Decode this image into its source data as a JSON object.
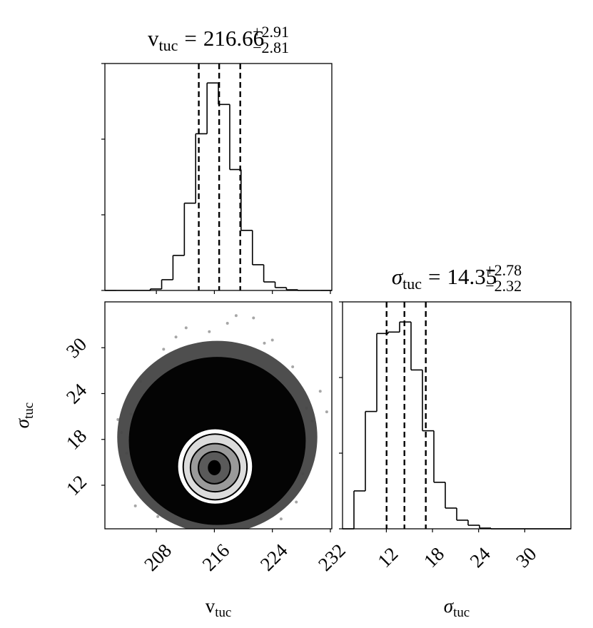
{
  "chart_data": [
    {
      "type": "histogram",
      "title": {
        "symbol": "v",
        "italic": false,
        "subscript": "tuc",
        "relation": "=",
        "value": "216.66",
        "plus": "+2.91",
        "minus": "−2.81"
      },
      "bins": [
        200.9,
        202.47,
        204.03,
        205.6,
        207.16,
        208.73,
        210.29,
        211.86,
        213.42,
        214.99,
        216.55,
        218.12,
        219.68,
        221.25,
        222.81,
        224.38,
        225.94,
        227.51,
        229.07,
        230.64,
        232.2
      ],
      "counts": [
        0,
        0,
        0,
        0,
        19,
        142,
        463,
        1154,
        2071,
        2743,
        2459,
        1598,
        794,
        340,
        113,
        38,
        9,
        0,
        0,
        0
      ],
      "quantiles": [
        213.85,
        216.66,
        219.57
      ],
      "color": "#000000",
      "xlim": [
        200.9,
        232.2
      ],
      "xticks": [
        208,
        216,
        224,
        232
      ],
      "xtick_labels": false,
      "ylim": [
        0,
        3000
      ],
      "yticks": [
        0,
        1000,
        2000,
        3000
      ],
      "ytick_labels": false
    },
    {
      "type": "density2d",
      "x": [
        204.5,
        203.2,
        228.7,
        229.5,
        212.1,
        221.4,
        224.0,
        209.0,
        226.8,
        205.8,
        230.6,
        206.4,
        228.2,
        203.9,
        219.0,
        215.3,
        210.7,
        227.3,
        205.1,
        231.5,
        222.9,
        217.8,
        208.2,
        225.2,
        202.7
      ],
      "y": [
        21.3,
        18.9,
        22.1,
        20.4,
        32.6,
        33.9,
        31.0,
        29.8,
        27.5,
        25.6,
        24.3,
        12.8,
        13.5,
        16.2,
        34.2,
        32.1,
        31.4,
        9.8,
        9.3,
        21.6,
        30.6,
        33.2,
        7.9,
        7.6,
        20.6
      ],
      "density": [
        {
          "cx": 216.4,
          "cy": 18.3,
          "rx": 13.8,
          "ry": 12.6,
          "color": "#444444"
        },
        {
          "cx": 216.4,
          "cy": 17.8,
          "rx": 12.2,
          "ry": 11.0,
          "color": "#000000"
        }
      ],
      "contours": [
        {
          "cx": 216.1,
          "cy": 14.46,
          "rx": 5.2,
          "ry": 4.96,
          "color": "#ffffff"
        },
        {
          "cx": 216.1,
          "cy": 14.4,
          "rx": 4.4,
          "ry": 4.3,
          "color": "#dcdcdc"
        },
        {
          "cx": 216.1,
          "cy": 14.3,
          "rx": 3.4,
          "ry": 3.15,
          "color": "#9a9a9a"
        },
        {
          "cx": 216.0,
          "cy": 14.3,
          "rx": 2.2,
          "ry": 2.1,
          "color": "#5a5a5a"
        },
        {
          "cx": 216.0,
          "cy": 14.3,
          "rx": 0.8,
          "ry": 0.9,
          "color": "#000000"
        }
      ],
      "xlim": [
        200.9,
        232.2
      ],
      "xticks": [
        208,
        216,
        224,
        232
      ],
      "xtick_labels": true,
      "ylim": [
        6.3,
        36.0
      ],
      "yticks": [
        12,
        18,
        24,
        30
      ],
      "ytick_labels": true,
      "xlabel": {
        "symbol": "v",
        "italic": false,
        "subscript": "tuc"
      },
      "ylabel": {
        "symbol": "σ",
        "italic": true,
        "subscript": "tuc"
      }
    },
    {
      "type": "histogram",
      "title": {
        "symbol": "σ",
        "italic": true,
        "subscript": "tuc",
        "relation": "=",
        "value": "14.35",
        "plus": "+2.78",
        "minus": "−2.32"
      },
      "bins": [
        6.3,
        7.785,
        9.27,
        10.755,
        12.24,
        13.725,
        15.21,
        16.695,
        18.18,
        19.665,
        21.15,
        22.635,
        24.12,
        25.605,
        27.09,
        28.575,
        30.06,
        31.545,
        33.03,
        34.515,
        36.0
      ],
      "counts": [
        0,
        501,
        1551,
        2582,
        2601,
        2734,
        2100,
        1296,
        615,
        274,
        114,
        47,
        9,
        0,
        0,
        0,
        0,
        0,
        0,
        0
      ],
      "quantiles": [
        12.03,
        14.35,
        17.13
      ],
      "color": "#000000",
      "xlim": [
        6.3,
        36.0
      ],
      "xticks": [
        12,
        18,
        24,
        30
      ],
      "xtick_labels": true,
      "ylim": [
        0,
        3000
      ],
      "yticks": [
        0,
        1000,
        2000,
        3000
      ],
      "ytick_labels": false,
      "xlabel": {
        "symbol": "σ",
        "italic": true,
        "subscript": "tuc"
      }
    }
  ]
}
